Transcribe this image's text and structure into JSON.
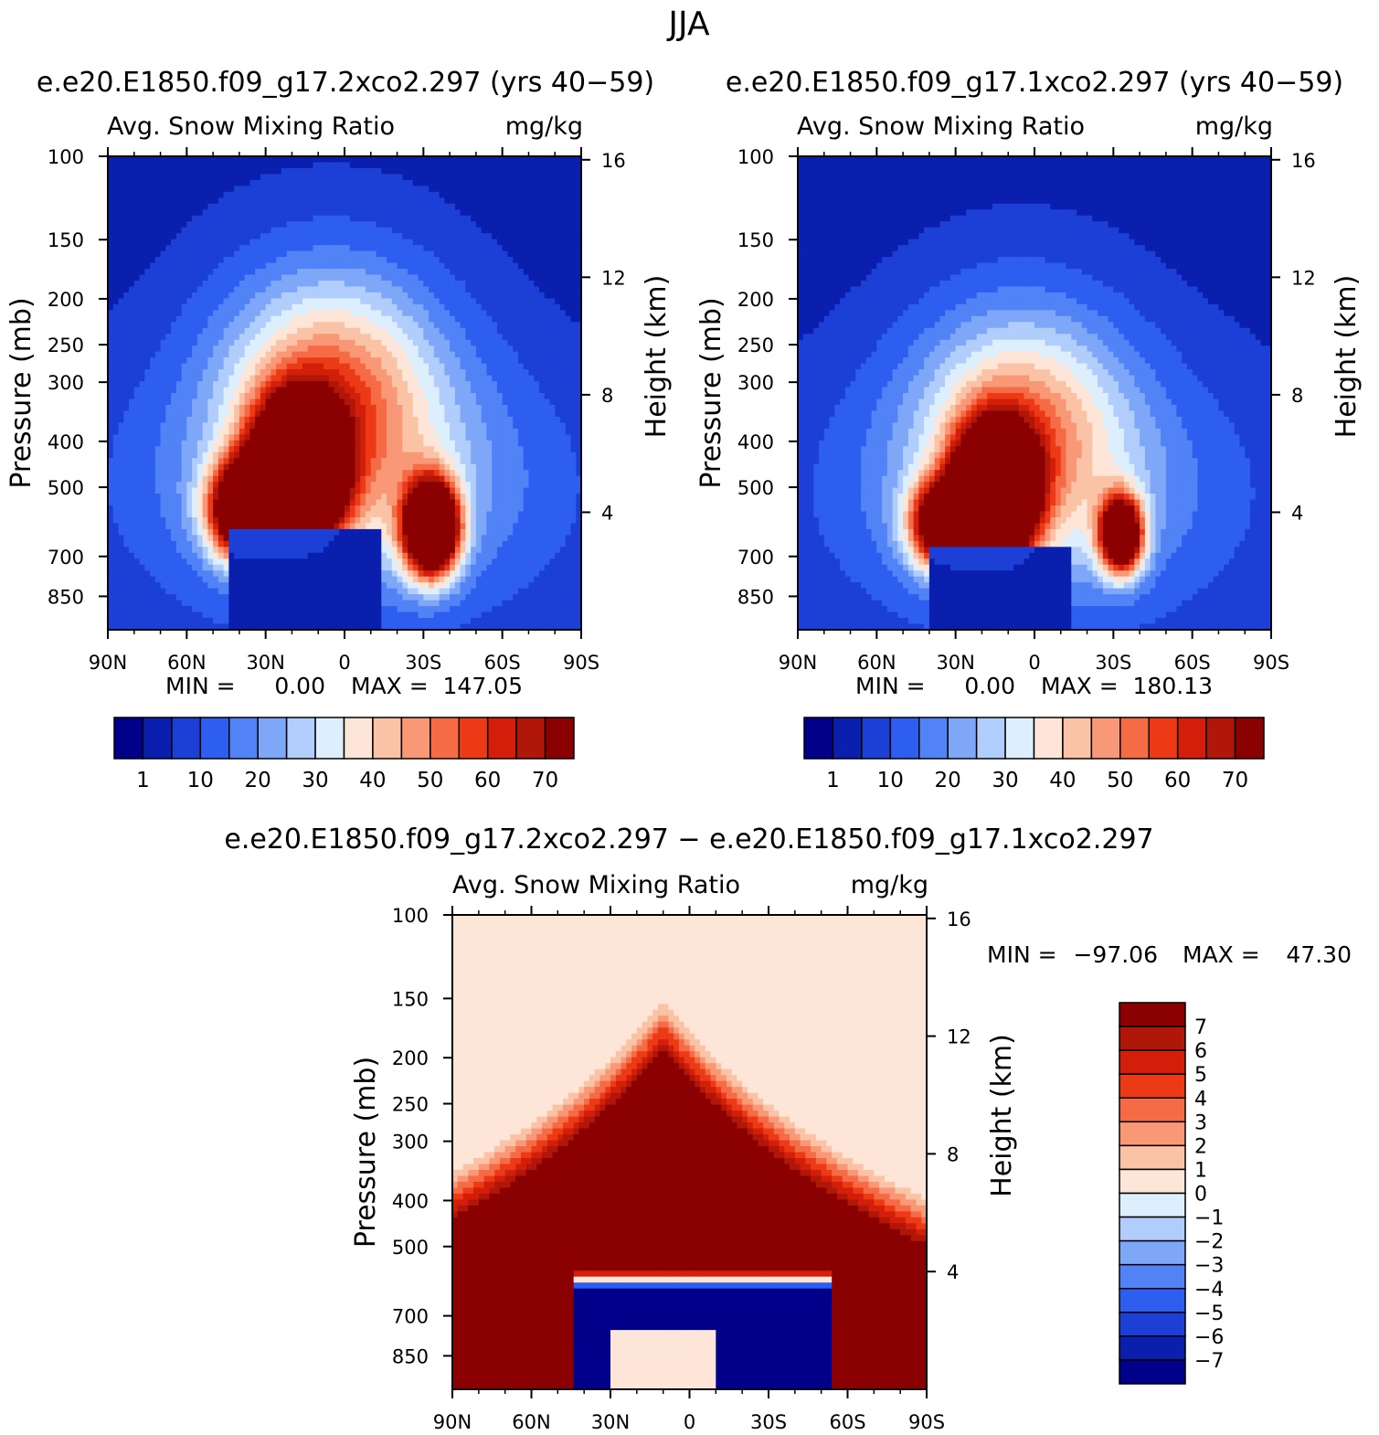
{
  "figure": {
    "title": "JJA",
    "difference_title": "e.e20.E1850.f09_g17.2xco2.297 − e.e20.E1850.f09_g17.1xco2.297"
  },
  "chart_data": [
    {
      "type": "heatmap",
      "title": "e.e20.E1850.f09_g17.2xco2.297 (yrs 40−59)",
      "subtitle_left": "Avg. Snow Mixing Ratio",
      "subtitle_right": "mg/kg",
      "xlabel": "",
      "ylabel": "Pressure (mb)",
      "ylabel_right": "Height (km)",
      "x_ticks": [
        "90N",
        "60N",
        "30N",
        "0",
        "30S",
        "60S",
        "90S"
      ],
      "x_range": [
        90,
        -90
      ],
      "y_ticks": [
        100,
        150,
        200,
        250,
        300,
        400,
        500,
        700,
        850
      ],
      "y_range_mb": [
        100,
        1000
      ],
      "y_scale": "log",
      "right_ticks_km": [
        16,
        12,
        8,
        4
      ],
      "stats": {
        "min_label": "MIN =",
        "min": "0.00",
        "max_label": "MAX =",
        "max": "147.05"
      },
      "colorbar": {
        "orientation": "horizontal",
        "labels": [
          "1",
          "10",
          "20",
          "30",
          "40",
          "50",
          "60",
          "70"
        ],
        "colors": [
          "#00008b",
          "#0a1fae",
          "#1c3fd6",
          "#2d5ef0",
          "#5182f6",
          "#7fa7f8",
          "#b1cdfb",
          "#ddeefd",
          "#fde6d8",
          "#fbc3a6",
          "#f99876",
          "#f56b45",
          "#ec3a17",
          "#d31f0a",
          "#b11708",
          "#8b0000"
        ]
      },
      "field": {
        "description_of_peaks": "NH mid-latitude maximum near 10N-45N around 400-600 mb, SH maximum near 30S around 550-700 mb",
        "peak1": {
          "lat": 15,
          "p_mb": 470,
          "value": 120
        },
        "peak2": {
          "lat": -35,
          "p_mb": 600,
          "value": 100
        }
      }
    },
    {
      "type": "heatmap",
      "title": "e.e20.E1850.f09_g17.1xco2.297 (yrs 40−59)",
      "subtitle_left": "Avg. Snow Mixing Ratio",
      "subtitle_right": "mg/kg",
      "xlabel": "",
      "ylabel": "Pressure (mb)",
      "ylabel_right": "Height (km)",
      "x_ticks": [
        "90N",
        "60N",
        "30N",
        "0",
        "30S",
        "60S",
        "90S"
      ],
      "x_range": [
        90,
        -90
      ],
      "y_ticks": [
        100,
        150,
        200,
        250,
        300,
        400,
        500,
        700,
        850
      ],
      "y_range_mb": [
        100,
        1000
      ],
      "y_scale": "log",
      "right_ticks_km": [
        16,
        12,
        8,
        4
      ],
      "stats": {
        "min_label": "MIN =",
        "min": "0.00",
        "max_label": "MAX =",
        "max": "180.13"
      },
      "colorbar": {
        "orientation": "horizontal",
        "labels": [
          "1",
          "10",
          "20",
          "30",
          "40",
          "50",
          "60",
          "70"
        ],
        "colors": [
          "#00008b",
          "#0a1fae",
          "#1c3fd6",
          "#2d5ef0",
          "#5182f6",
          "#7fa7f8",
          "#b1cdfb",
          "#ddeefd",
          "#fde6d8",
          "#fbc3a6",
          "#f99876",
          "#f56b45",
          "#ec3a17",
          "#d31f0a",
          "#b11708",
          "#8b0000"
        ]
      },
      "field": {
        "peak1": {
          "lat": 15,
          "p_mb": 500,
          "value": 130
        },
        "peak2": {
          "lat": -35,
          "p_mb": 620,
          "value": 90
        }
      }
    },
    {
      "type": "heatmap",
      "title": "",
      "subtitle_left": "Avg. Snow Mixing Ratio",
      "subtitle_right": "mg/kg",
      "xlabel": "",
      "ylabel": "Pressure (mb)",
      "ylabel_right": "Height (km)",
      "x_ticks": [
        "90N",
        "60N",
        "30N",
        "0",
        "30S",
        "60S",
        "90S"
      ],
      "x_range": [
        90,
        -90
      ],
      "y_ticks": [
        100,
        150,
        200,
        250,
        300,
        400,
        500,
        700,
        850
      ],
      "y_range_mb": [
        100,
        1000
      ],
      "y_scale": "log",
      "right_ticks_km": [
        16,
        12,
        8,
        4
      ],
      "stats": {
        "min_label": "MIN =",
        "min": "−97.06",
        "max_label": "MAX =",
        "max": "47.30"
      },
      "colorbar": {
        "orientation": "vertical",
        "labels": [
          "7",
          "6",
          "5",
          "4",
          "3",
          "2",
          "1",
          "0",
          "−1",
          "−2",
          "−3",
          "−4",
          "−5",
          "−6",
          "−7"
        ],
        "colors": [
          "#8b0000",
          "#b11708",
          "#d31f0a",
          "#ec3a17",
          "#f56b45",
          "#f99876",
          "#fbc3a6",
          "#fde6d8",
          "#ddeefd",
          "#b1cdfb",
          "#7fa7f8",
          "#5182f6",
          "#2d5ef0",
          "#1c3fd6",
          "#0a1fae",
          "#00008b"
        ]
      }
    }
  ]
}
